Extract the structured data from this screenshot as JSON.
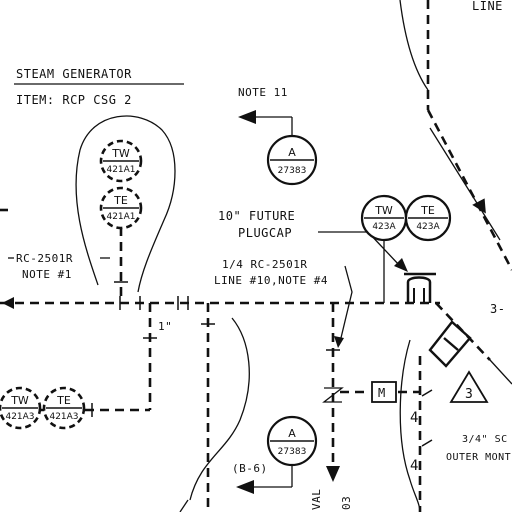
{
  "header": {
    "title": "STEAM GENERATOR",
    "item": "ITEM: RCP CSG 2"
  },
  "labels": {
    "note_top": "NOTE 11",
    "line_top_right": "LINE",
    "future_plug_1": "10\" FUTURE",
    "future_plug_2": "PLUGCAP",
    "rc_line_1": "1/4 RC-2501R",
    "rc_line_2": "LINE #10,NOTE #4",
    "rc_left_1": "RC-2501R",
    "rc_left_2": "NOTE #1",
    "size_1in": "1\"",
    "size_3_4": "3/4\" SC",
    "outer_mont": "OUTER MONT",
    "ref_b6": "(B-6)",
    "valve_m": "M",
    "tri_note": "3",
    "three_dash": "3-",
    "val_text": "VAL",
    "num_03": "03"
  },
  "instruments": [
    {
      "id": "tw-421a1",
      "tag": "TW",
      "num": "421A1"
    },
    {
      "id": "te-421a1",
      "tag": "TE",
      "num": "421A1"
    },
    {
      "id": "tw-421a3",
      "tag": "TW",
      "num": "421A3"
    },
    {
      "id": "te-421a3",
      "tag": "TE",
      "num": "421A3"
    },
    {
      "id": "tw-423a",
      "tag": "TW",
      "num": "423A"
    },
    {
      "id": "te-423a",
      "tag": "TE",
      "num": "423A"
    },
    {
      "id": "a-27383-top",
      "tag": "A",
      "num": "27383"
    },
    {
      "id": "a-27383-bottom",
      "tag": "A",
      "num": "27383"
    }
  ]
}
